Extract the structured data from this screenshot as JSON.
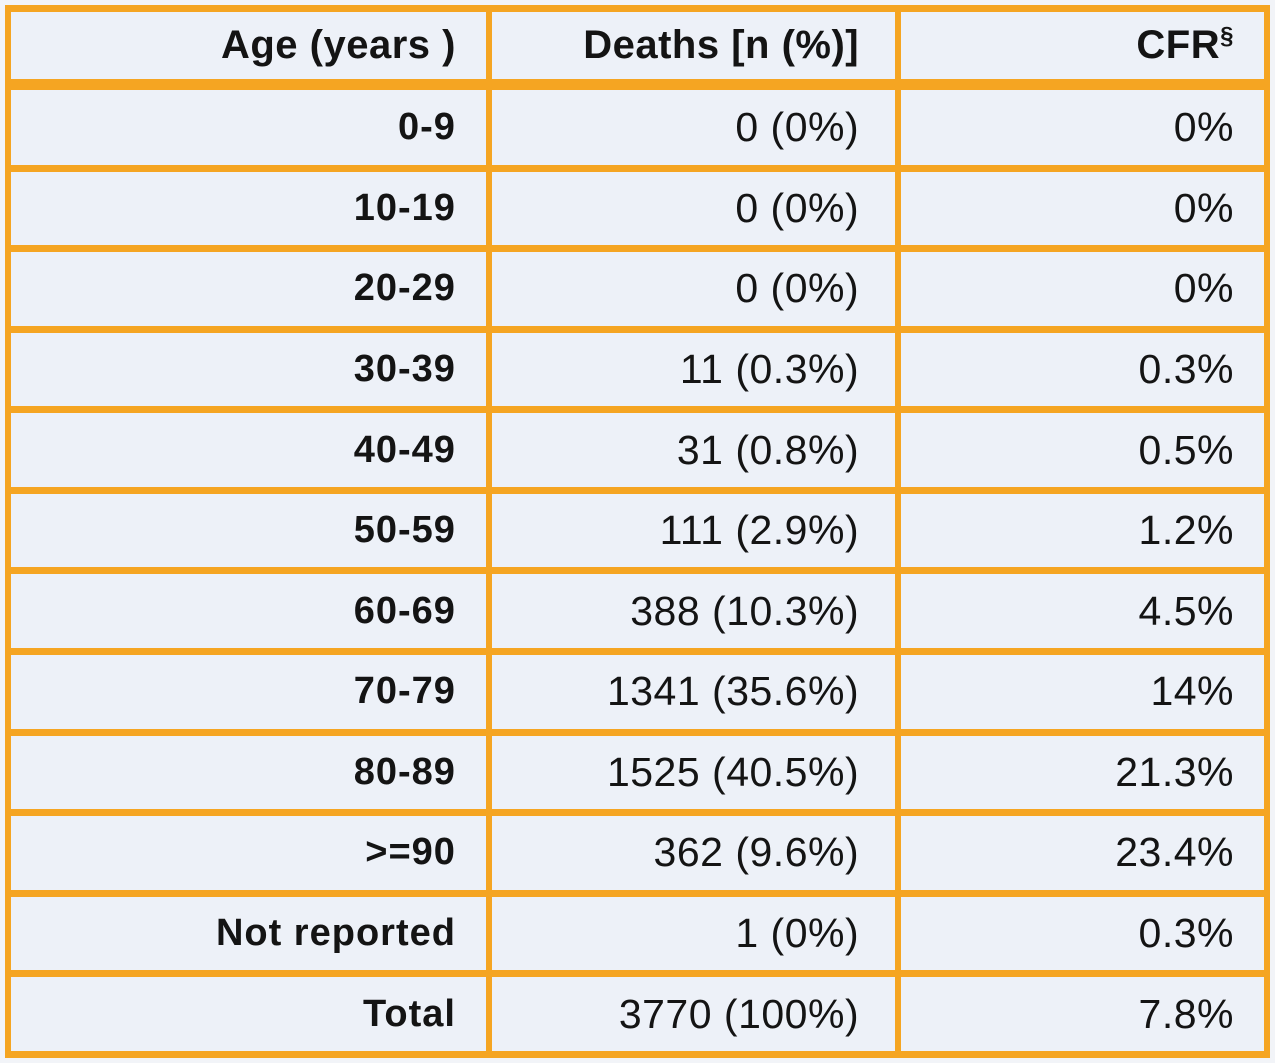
{
  "table": {
    "header": {
      "age_label": "Age (years )",
      "deaths_label": "Deaths [n (%)]",
      "cfr_label": "CFR",
      "cfr_superscript": "§"
    },
    "rows": [
      {
        "age": "0-9",
        "deaths": "0 (0%)",
        "cfr": "0%"
      },
      {
        "age": "10-19",
        "deaths": "0 (0%)",
        "cfr": "0%"
      },
      {
        "age": "20-29",
        "deaths": "0 (0%)",
        "cfr": "0%"
      },
      {
        "age": "30-39",
        "deaths": "11 (0.3%)",
        "cfr": "0.3%"
      },
      {
        "age": "40-49",
        "deaths": "31 (0.8%)",
        "cfr": "0.5%"
      },
      {
        "age": "50-59",
        "deaths": "111 (2.9%)",
        "cfr": "1.2%"
      },
      {
        "age": "60-69",
        "deaths": "388 (10.3%)",
        "cfr": "4.5%"
      },
      {
        "age": "70-79",
        "deaths": "1341 (35.6%)",
        "cfr": "14%"
      },
      {
        "age": "80-89",
        "deaths": "1525 (40.5%)",
        "cfr": "21.3%"
      },
      {
        "age": ">=90",
        "deaths": "362 (9.6%)",
        "cfr": "23.4%"
      },
      {
        "age": "Not reported",
        "deaths": "1 (0%)",
        "cfr": "0.3%"
      },
      {
        "age": "Total",
        "deaths": "3770 (100%)",
        "cfr": "7.8%"
      }
    ],
    "colors": {
      "border": "#F5A522",
      "cell_background": "#EDF1F8",
      "text": "#141414"
    }
  },
  "chart_data": {
    "type": "table",
    "title": "",
    "columns": [
      "Age (years )",
      "Deaths [n (%)]",
      "CFR§"
    ],
    "rows": [
      [
        "0-9",
        "0 (0%)",
        "0%"
      ],
      [
        "10-19",
        "0 (0%)",
        "0%"
      ],
      [
        "20-29",
        "0 (0%)",
        "0%"
      ],
      [
        "30-39",
        "11 (0.3%)",
        "0.3%"
      ],
      [
        "40-49",
        "31 (0.8%)",
        "0.5%"
      ],
      [
        "50-59",
        "111 (2.9%)",
        "1.2%"
      ],
      [
        "60-69",
        "388 (10.3%)",
        "4.5%"
      ],
      [
        "70-79",
        "1341 (35.6%)",
        "14%"
      ],
      [
        "80-89",
        "1525 (40.5%)",
        "21.3%"
      ],
      [
        ">=90",
        "362 (9.6%)",
        "23.4%"
      ],
      [
        "Not reported",
        "1 (0%)",
        "0.3%"
      ],
      [
        "Total",
        "3770 (100%)",
        "7.8%"
      ]
    ],
    "series": [
      {
        "name": "Deaths n",
        "values": [
          0,
          0,
          0,
          11,
          31,
          111,
          388,
          1341,
          1525,
          362,
          1,
          3770
        ]
      },
      {
        "name": "Deaths %",
        "values": [
          0,
          0,
          0,
          0.3,
          0.8,
          2.9,
          10.3,
          35.6,
          40.5,
          9.6,
          0,
          100
        ]
      },
      {
        "name": "CFR %",
        "values": [
          0,
          0,
          0,
          0.3,
          0.5,
          1.2,
          4.5,
          14,
          21.3,
          23.4,
          0.3,
          7.8
        ]
      }
    ],
    "categories": [
      "0-9",
      "10-19",
      "20-29",
      "30-39",
      "40-49",
      "50-59",
      "60-69",
      "70-79",
      "80-89",
      ">=90",
      "Not reported",
      "Total"
    ]
  }
}
